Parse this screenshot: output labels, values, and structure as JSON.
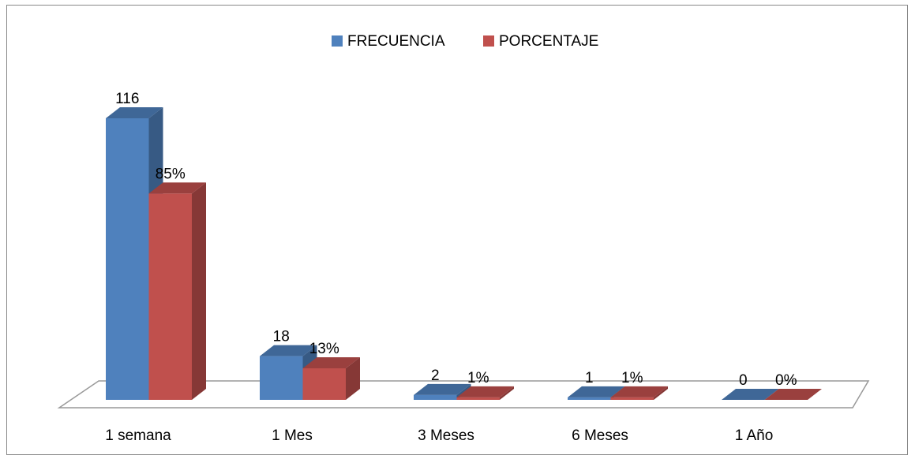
{
  "chart_data": {
    "type": "bar3d",
    "categories": [
      "1 semana",
      "1 Mes",
      "3 Meses",
      "6 Meses",
      "1 Año"
    ],
    "series": [
      {
        "name": "FRECUENCIA",
        "color": "#4f81bd",
        "values": [
          116,
          18,
          2,
          1,
          0
        ]
      },
      {
        "name": "PORCENTAJE",
        "color": "#c0504d",
        "values": [
          85,
          13,
          1,
          1,
          0
        ],
        "value_labels": [
          "85%",
          "13%",
          "1%",
          "1%",
          "0%"
        ]
      }
    ],
    "legend": "top"
  }
}
